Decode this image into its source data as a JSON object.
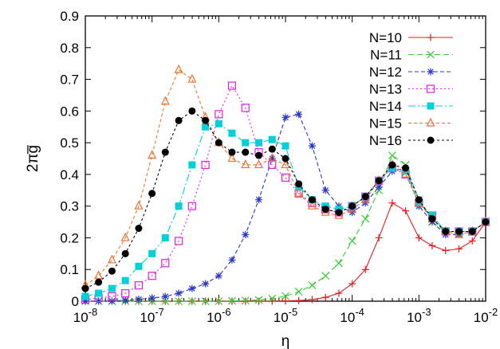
{
  "chart_data": {
    "type": "line",
    "xlabel": "η",
    "ylabel": "2πg̅",
    "xscale": "log",
    "xlim": [
      1e-08,
      0.01
    ],
    "ylim": [
      0,
      0.9
    ],
    "xticks": [
      {
        "value": 1e-08,
        "base": "10",
        "exp": "-8"
      },
      {
        "value": 1e-07,
        "base": "10",
        "exp": "-7"
      },
      {
        "value": 1e-06,
        "base": "10",
        "exp": "-6"
      },
      {
        "value": 1e-05,
        "base": "10",
        "exp": "-5"
      },
      {
        "value": 0.0001,
        "base": "10",
        "exp": "-4"
      },
      {
        "value": 0.001,
        "base": "10",
        "exp": "-3"
      },
      {
        "value": 0.01,
        "base": "10",
        "exp": "-2"
      }
    ],
    "yticks": [
      {
        "value": 0,
        "label": "0"
      },
      {
        "value": 0.1,
        "label": "0.1"
      },
      {
        "value": 0.2,
        "label": "0.2"
      },
      {
        "value": 0.3,
        "label": "0.3"
      },
      {
        "value": 0.4,
        "label": "0.4"
      },
      {
        "value": 0.5,
        "label": "0.5"
      },
      {
        "value": 0.6,
        "label": "0.6"
      },
      {
        "value": 0.7,
        "label": "0.7"
      },
      {
        "value": 0.8,
        "label": "0.8"
      },
      {
        "value": 0.9,
        "label": "0.9"
      }
    ],
    "grid": false,
    "legend_position": "top-right",
    "series": [
      {
        "name": "N=10",
        "color": "#e41a1c",
        "marker": "plus",
        "dash": "solid",
        "x": [
          1e-08,
          1.58e-08,
          2.51e-08,
          3.98e-08,
          6.31e-08,
          1e-07,
          1.58e-07,
          2.51e-07,
          3.98e-07,
          6.31e-07,
          1e-06,
          1.58e-06,
          2.51e-06,
          3.98e-06,
          6.31e-06,
          1e-05,
          1.58e-05,
          2.51e-05,
          3.98e-05,
          6.31e-05,
          0.0001,
          0.000158,
          0.000251,
          0.000398,
          0.000631,
          0.001,
          0.00158,
          0.00251,
          0.00398,
          0.00631,
          0.01
        ],
        "y": [
          0,
          0,
          0,
          0,
          0,
          0,
          0,
          0,
          0,
          0,
          0,
          0,
          0,
          0,
          0,
          0.001,
          0.002,
          0.005,
          0.012,
          0.025,
          0.055,
          0.1,
          0.2,
          0.31,
          0.285,
          0.2,
          0.175,
          0.16,
          0.165,
          0.19,
          0.25
        ]
      },
      {
        "name": "N=11",
        "color": "#33cc33",
        "marker": "cross",
        "dash": "7,4",
        "x": [
          1e-08,
          1.58e-08,
          2.51e-08,
          3.98e-08,
          6.31e-08,
          1e-07,
          1.58e-07,
          2.51e-07,
          3.98e-07,
          6.31e-07,
          1e-06,
          1.58e-06,
          2.51e-06,
          3.98e-06,
          6.31e-06,
          1e-05,
          1.58e-05,
          2.51e-05,
          3.98e-05,
          6.31e-05,
          0.0001,
          0.000158,
          0.000251,
          0.000398,
          0.000631,
          0.001,
          0.00158,
          0.00251,
          0.00398,
          0.00631,
          0.01
        ],
        "y": [
          0,
          0,
          0,
          0,
          0,
          0,
          0,
          0,
          0,
          0,
          0,
          0.001,
          0.002,
          0.004,
          0.008,
          0.016,
          0.03,
          0.05,
          0.08,
          0.12,
          0.19,
          0.26,
          0.35,
          0.46,
          0.43,
          0.32,
          0.25,
          0.22,
          0.21,
          0.22,
          0.25
        ]
      },
      {
        "name": "N=12",
        "color": "#2b35c4",
        "marker": "star",
        "dash": "5,3",
        "x": [
          1e-08,
          1.58e-08,
          2.51e-08,
          3.98e-08,
          6.31e-08,
          1e-07,
          1.58e-07,
          2.51e-07,
          3.98e-07,
          6.31e-07,
          1e-06,
          1.58e-06,
          2.51e-06,
          3.98e-06,
          6.31e-06,
          1e-05,
          1.58e-05,
          2.51e-05,
          3.98e-05,
          6.31e-05,
          0.0001,
          0.000158,
          0.000251,
          0.000398,
          0.000631,
          0.001,
          0.00158,
          0.00251,
          0.00398,
          0.00631,
          0.01
        ],
        "y": [
          0,
          0,
          0,
          0.003,
          0.006,
          0.01,
          0.015,
          0.025,
          0.04,
          0.055,
          0.08,
          0.13,
          0.21,
          0.32,
          0.45,
          0.58,
          0.59,
          0.49,
          0.35,
          0.3,
          0.28,
          0.31,
          0.36,
          0.41,
          0.42,
          0.3,
          0.25,
          0.21,
          0.21,
          0.22,
          0.25
        ]
      },
      {
        "name": "N=13",
        "color": "#e020e0",
        "marker": "square-open",
        "dash": "2,3",
        "x": [
          1e-08,
          1.58e-08,
          2.51e-08,
          3.98e-08,
          6.31e-08,
          1e-07,
          1.58e-07,
          2.51e-07,
          3.98e-07,
          6.31e-07,
          1e-06,
          1.58e-06,
          2.51e-06,
          3.98e-06,
          6.31e-06,
          1e-05,
          1.58e-05,
          2.51e-05,
          3.98e-05,
          6.31e-05,
          0.0001,
          0.000158,
          0.000251,
          0.000398,
          0.000631,
          0.001,
          0.00158,
          0.00251,
          0.00398,
          0.00631,
          0.01
        ],
        "y": [
          0.005,
          0.01,
          0.015,
          0.025,
          0.05,
          0.08,
          0.12,
          0.19,
          0.3,
          0.43,
          0.59,
          0.68,
          0.61,
          0.47,
          0.43,
          0.39,
          0.34,
          0.31,
          0.29,
          0.28,
          0.3,
          0.33,
          0.38,
          0.42,
          0.4,
          0.31,
          0.27,
          0.22,
          0.22,
          0.22,
          0.25
        ]
      },
      {
        "name": "N=14",
        "color": "#00d0d8",
        "marker": "square",
        "dash": "9,3,2,3",
        "x": [
          1e-08,
          1.58e-08,
          2.51e-08,
          3.98e-08,
          6.31e-08,
          1e-07,
          1.58e-07,
          2.51e-07,
          3.98e-07,
          6.31e-07,
          1e-06,
          1.58e-06,
          2.51e-06,
          3.98e-06,
          6.31e-06,
          1e-05,
          1.58e-05,
          2.51e-05,
          3.98e-05,
          6.31e-05,
          0.0001,
          0.000158,
          0.000251,
          0.000398,
          0.000631,
          0.001,
          0.00158,
          0.00251,
          0.00398,
          0.00631,
          0.01
        ],
        "y": [
          0.015,
          0.025,
          0.04,
          0.065,
          0.11,
          0.15,
          0.2,
          0.3,
          0.43,
          0.55,
          0.56,
          0.53,
          0.5,
          0.5,
          0.51,
          0.49,
          0.36,
          0.32,
          0.3,
          0.29,
          0.3,
          0.33,
          0.38,
          0.42,
          0.41,
          0.31,
          0.27,
          0.22,
          0.22,
          0.22,
          0.25
        ]
      },
      {
        "name": "N=15",
        "color": "#f07030",
        "marker": "triangle-open",
        "dash": "4,3",
        "x": [
          1e-08,
          1.58e-08,
          2.51e-08,
          3.98e-08,
          6.31e-08,
          1e-07,
          1.58e-07,
          2.51e-07,
          3.98e-07,
          6.31e-07,
          1e-06,
          1.58e-06,
          2.51e-06,
          3.98e-06,
          6.31e-06,
          1e-05,
          1.58e-05,
          2.51e-05,
          3.98e-05,
          6.31e-05,
          0.0001,
          0.000158,
          0.000251,
          0.000398,
          0.000631,
          0.001,
          0.00158,
          0.00251,
          0.00398,
          0.00631,
          0.01
        ],
        "y": [
          0.05,
          0.08,
          0.13,
          0.2,
          0.3,
          0.46,
          0.63,
          0.73,
          0.7,
          0.58,
          0.5,
          0.45,
          0.43,
          0.43,
          0.45,
          0.43,
          0.34,
          0.3,
          0.28,
          0.27,
          0.29,
          0.32,
          0.38,
          0.43,
          0.4,
          0.31,
          0.26,
          0.22,
          0.21,
          0.22,
          0.25
        ]
      },
      {
        "name": "N=16",
        "color": "#000000",
        "marker": "circle",
        "dash": "3,3",
        "x": [
          1e-08,
          1.58e-08,
          2.51e-08,
          3.98e-08,
          6.31e-08,
          1e-07,
          1.58e-07,
          2.51e-07,
          3.98e-07,
          6.31e-07,
          1e-06,
          1.58e-06,
          2.51e-06,
          3.98e-06,
          6.31e-06,
          1e-05,
          1.58e-05,
          2.51e-05,
          3.98e-05,
          6.31e-05,
          0.0001,
          0.000158,
          0.000251,
          0.000398,
          0.000631,
          0.001,
          0.00158,
          0.00251,
          0.00398,
          0.00631,
          0.01
        ],
        "y": [
          0.04,
          0.06,
          0.095,
          0.15,
          0.23,
          0.34,
          0.47,
          0.57,
          0.6,
          0.57,
          0.5,
          0.47,
          0.47,
          0.46,
          0.48,
          0.45,
          0.37,
          0.32,
          0.29,
          0.28,
          0.3,
          0.33,
          0.38,
          0.43,
          0.42,
          0.32,
          0.26,
          0.22,
          0.22,
          0.22,
          0.25
        ]
      }
    ]
  }
}
